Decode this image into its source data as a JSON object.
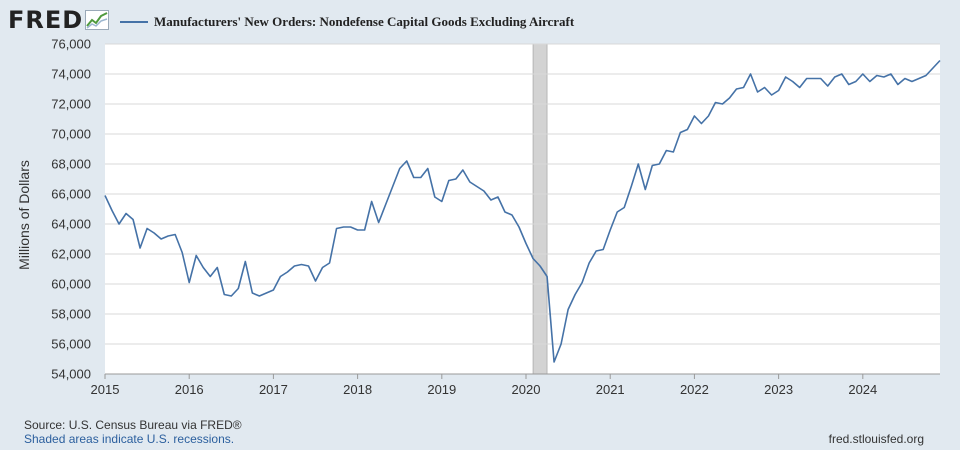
{
  "brand": {
    "name": "FRED",
    "icon": "line-chart-logo-icon"
  },
  "legend": {
    "label": "Manufacturers' New Orders: Nondefense Capital Goods Excluding Aircraft",
    "color": "#4572a7"
  },
  "footer": {
    "source": "Source: U.S. Census Bureau via FRED®",
    "recessions": "Shaded areas indicate U.S. recessions.",
    "site": "fred.stlouisfed.org"
  },
  "colors": {
    "background": "#e1e9f0",
    "plot_background": "#ffffff",
    "line": "#4572a7",
    "recession": "#d3d3d3",
    "grid": "#d8d8d8"
  },
  "chart_data": {
    "type": "line",
    "title": "",
    "xlabel": "",
    "ylabel": "Millions of Dollars",
    "ylim": [
      54000,
      76000
    ],
    "yticks": [
      54000,
      56000,
      58000,
      60000,
      62000,
      64000,
      66000,
      68000,
      70000,
      72000,
      74000,
      76000
    ],
    "ytick_labels": [
      "54,000",
      "56,000",
      "58,000",
      "60,000",
      "62,000",
      "64,000",
      "66,000",
      "68,000",
      "70,000",
      "72,000",
      "74,000",
      "76,000"
    ],
    "xlim": [
      "2015-01",
      "2024-12"
    ],
    "xticks": [
      "2015",
      "2016",
      "2017",
      "2018",
      "2019",
      "2020",
      "2021",
      "2022",
      "2023",
      "2024"
    ],
    "grid": "horizontal",
    "recessions": [
      {
        "start": "2020-02",
        "end": "2020-04"
      }
    ],
    "series": [
      {
        "name": "Manufacturers' New Orders: Nondefense Capital Goods Excluding Aircraft",
        "x": [
          "2015-01",
          "2015-02",
          "2015-03",
          "2015-04",
          "2015-05",
          "2015-06",
          "2015-07",
          "2015-08",
          "2015-09",
          "2015-10",
          "2015-11",
          "2015-12",
          "2016-01",
          "2016-02",
          "2016-03",
          "2016-04",
          "2016-05",
          "2016-06",
          "2016-07",
          "2016-08",
          "2016-09",
          "2016-10",
          "2016-11",
          "2016-12",
          "2017-01",
          "2017-02",
          "2017-03",
          "2017-04",
          "2017-05",
          "2017-06",
          "2017-07",
          "2017-08",
          "2017-09",
          "2017-10",
          "2017-11",
          "2017-12",
          "2018-01",
          "2018-02",
          "2018-03",
          "2018-04",
          "2018-05",
          "2018-06",
          "2018-07",
          "2018-08",
          "2018-09",
          "2018-10",
          "2018-11",
          "2018-12",
          "2019-01",
          "2019-02",
          "2019-03",
          "2019-04",
          "2019-05",
          "2019-06",
          "2019-07",
          "2019-08",
          "2019-09",
          "2019-10",
          "2019-11",
          "2019-12",
          "2020-01",
          "2020-02",
          "2020-03",
          "2020-04",
          "2020-05",
          "2020-06",
          "2020-07",
          "2020-08",
          "2020-09",
          "2020-10",
          "2020-11",
          "2020-12",
          "2021-01",
          "2021-02",
          "2021-03",
          "2021-04",
          "2021-05",
          "2021-06",
          "2021-07",
          "2021-08",
          "2021-09",
          "2021-10",
          "2021-11",
          "2021-12",
          "2022-01",
          "2022-02",
          "2022-03",
          "2022-04",
          "2022-05",
          "2022-06",
          "2022-07",
          "2022-08",
          "2022-09",
          "2022-10",
          "2022-11",
          "2022-12",
          "2023-01",
          "2023-02",
          "2023-03",
          "2023-04",
          "2023-05",
          "2023-06",
          "2023-07",
          "2023-08",
          "2023-09",
          "2023-10",
          "2023-11",
          "2023-12",
          "2024-01",
          "2024-02",
          "2024-03",
          "2024-04",
          "2024-05",
          "2024-06",
          "2024-07",
          "2024-08",
          "2024-09",
          "2024-10",
          "2024-11",
          "2024-12"
        ],
        "values": [
          65900,
          64900,
          64000,
          64700,
          64300,
          62400,
          63700,
          63400,
          63000,
          63200,
          63300,
          62100,
          60100,
          61900,
          61100,
          60500,
          61100,
          59300,
          59200,
          59700,
          61500,
          59400,
          59200,
          59400,
          59600,
          60500,
          60800,
          61200,
          61300,
          61200,
          60200,
          61100,
          61400,
          63700,
          63800,
          63800,
          63600,
          63600,
          65500,
          64100,
          65300,
          66500,
          67700,
          68200,
          67100,
          67100,
          67700,
          65800,
          65500,
          66900,
          67000,
          67600,
          66800,
          66500,
          66200,
          65600,
          65800,
          64800,
          64600,
          63800,
          62700,
          61700,
          61200,
          60500,
          54800,
          56000,
          58300,
          59300,
          60100,
          61400,
          62200,
          62300,
          63600,
          64800,
          65100,
          66500,
          68000,
          66300,
          67900,
          68000,
          68900,
          68800,
          70100,
          70300,
          71200,
          70700,
          71200,
          72100,
          72000,
          72400,
          73000,
          73100,
          74000,
          72800,
          73100,
          72600,
          72900,
          73800,
          73500,
          73100,
          73700,
          73700,
          73700,
          73200,
          73800,
          74000,
          73300,
          73500,
          74000,
          73500,
          73900,
          73800,
          74000,
          73300,
          73700,
          73500,
          73700,
          73900,
          74400,
          74900
        ]
      }
    ]
  }
}
